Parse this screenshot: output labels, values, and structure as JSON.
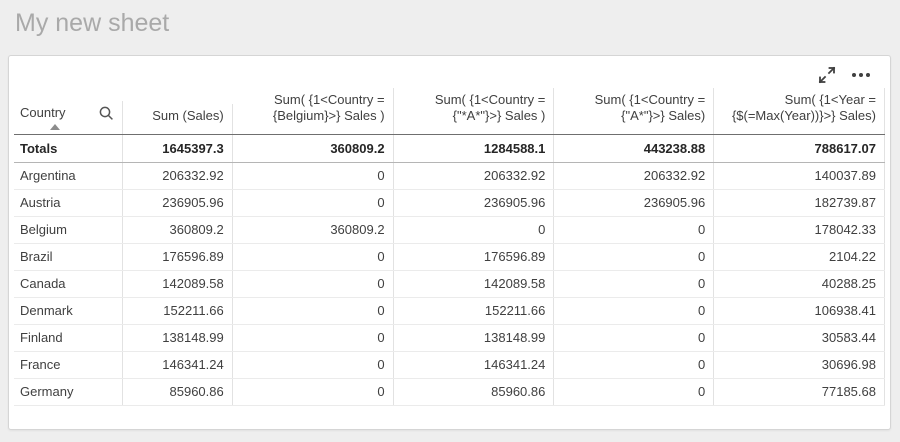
{
  "sheet": {
    "title": "My new sheet"
  },
  "toolbar": {
    "icons": [
      {
        "name": "fullscreen-icon",
        "meaning": "expand to fullscreen"
      },
      {
        "name": "more-options-icon",
        "meaning": "more options menu"
      }
    ]
  },
  "table": {
    "columns": [
      {
        "label": "Country",
        "align": "left",
        "sorted": "ascending",
        "has_search_icon": true
      },
      {
        "label": "Sum (Sales)",
        "align": "right"
      },
      {
        "label": "Sum( {1<Country = {Belgium}>} Sales )",
        "align": "right"
      },
      {
        "label": "Sum( {1<Country = {\"*A*\"}>} Sales )",
        "align": "right"
      },
      {
        "label": "Sum( {1<Country = {\"A*\"}>} Sales)",
        "align": "right"
      },
      {
        "label": "Sum( {1<Year = {$(=Max(Year))}>} Sales)",
        "align": "right"
      }
    ],
    "totals": {
      "label": "Totals",
      "values": [
        "1645397.3",
        "360809.2",
        "1284588.1",
        "443238.88",
        "788617.07"
      ]
    },
    "rows": [
      {
        "country": "Argentina",
        "values": [
          "206332.92",
          "0",
          "206332.92",
          "206332.92",
          "140037.89"
        ]
      },
      {
        "country": "Austria",
        "values": [
          "236905.96",
          "0",
          "236905.96",
          "236905.96",
          "182739.87"
        ]
      },
      {
        "country": "Belgium",
        "values": [
          "360809.2",
          "360809.2",
          "0",
          "0",
          "178042.33"
        ]
      },
      {
        "country": "Brazil",
        "values": [
          "176596.89",
          "0",
          "176596.89",
          "0",
          "2104.22"
        ]
      },
      {
        "country": "Canada",
        "values": [
          "142089.58",
          "0",
          "142089.58",
          "0",
          "40288.25"
        ]
      },
      {
        "country": "Denmark",
        "values": [
          "152211.66",
          "0",
          "152211.66",
          "0",
          "106938.41"
        ]
      },
      {
        "country": "Finland",
        "values": [
          "138148.99",
          "0",
          "138148.99",
          "0",
          "30583.44"
        ]
      },
      {
        "country": "France",
        "values": [
          "146341.24",
          "0",
          "146341.24",
          "0",
          "30696.98"
        ]
      },
      {
        "country": "Germany",
        "values": [
          "85960.86",
          "0",
          "85960.86",
          "0",
          "77185.68"
        ]
      }
    ]
  },
  "icons": {
    "search": "search-icon",
    "sort_ascending": "sort-ascending-icon",
    "fullscreen": "fullscreen-icon",
    "more_options": "more-options-icon"
  },
  "colors": {
    "page_background": "#eeeeee",
    "card_background": "#ffffff",
    "title_text": "#a9a9a9",
    "table_text": "#404040",
    "totals_text": "#262626",
    "header_underline": "#6f6f6f",
    "totals_underline": "#b5b5b5",
    "grid_line": "#e2e2e2"
  }
}
